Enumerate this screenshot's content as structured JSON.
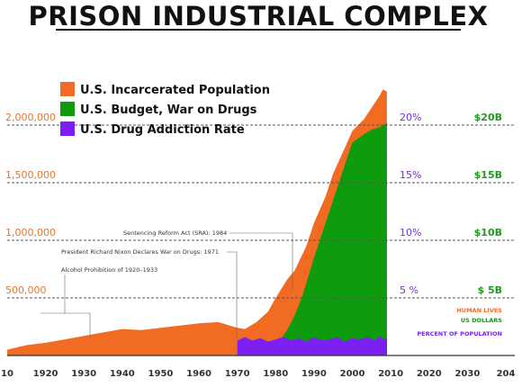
{
  "chart_data": {
    "type": "area",
    "title": "PRISON INDUSTRIAL COMPLEX",
    "x_ticks": [
      "10",
      "1920",
      "1930",
      "1940",
      "1950",
      "1960",
      "1970",
      "1980",
      "1990",
      "2000",
      "2010",
      "2020",
      "2030",
      "204"
    ],
    "x_range": [
      1910,
      2040
    ],
    "y_left": {
      "ticks": [
        "500,000",
        "1,000,000",
        "1,500,000",
        "2,000,000"
      ],
      "tick_values": [
        500000,
        1000000,
        1500000,
        2000000
      ],
      "range": [
        0,
        2500000
      ]
    },
    "y_mid": {
      "ticks": [
        "5 %",
        "10%",
        "15%",
        "20%"
      ]
    },
    "y_right": {
      "ticks": [
        "$ 5B",
        "$10B",
        "$15B",
        "$20B"
      ]
    },
    "legend": [
      {
        "label": "U.S. Incarcerated Population",
        "color": "#f26b22"
      },
      {
        "label": "U.S. Budget, War on Drugs",
        "color": "#0e9c0e"
      },
      {
        "label": "U.S. Drug Addiction Rate",
        "color": "#7b1ff2"
      }
    ],
    "key_labels": [
      {
        "label": "HUMAN LIVES",
        "color": "#f26b22"
      },
      {
        "label": "US DOLLARS",
        "color": "#0e9c0e"
      },
      {
        "label": "PERCENT OF POPULATION",
        "color": "#7b1ff2"
      }
    ],
    "annotations": [
      {
        "text": "Sentencing Reform Act (SRA): 1984",
        "year": 1984
      },
      {
        "text": "President Richard Nixon Declares War on Drugs: 1971",
        "year": 1971
      },
      {
        "text": "Alcohol Prohibition of 1920–1933",
        "year_start": 1920,
        "year_end": 1933
      }
    ],
    "series": [
      {
        "key": "incarcerated",
        "x": [
          1910,
          1915,
          1920,
          1925,
          1930,
          1935,
          1940,
          1945,
          1950,
          1955,
          1960,
          1965,
          1970,
          1972,
          1975,
          1978,
          1980,
          1983,
          1985,
          1988,
          1990,
          1993,
          1995,
          1998,
          2000,
          2003,
          2005,
          2007,
          2008,
          2009
        ],
        "values": [
          50000,
          90000,
          110000,
          140000,
          170000,
          200000,
          230000,
          220000,
          240000,
          260000,
          280000,
          290000,
          240000,
          230000,
          290000,
          380000,
          500000,
          660000,
          740000,
          950000,
          1150000,
          1380000,
          1580000,
          1800000,
          1950000,
          2050000,
          2150000,
          2250000,
          2310000,
          2290000
        ]
      },
      {
        "key": "budget",
        "x": [
          1970,
          1973,
          1975,
          1977,
          1980,
          1983,
          1985,
          1987,
          1990,
          1993,
          1995,
          1998,
          2000,
          2003,
          2005,
          2007,
          2009
        ],
        "values": [
          0,
          0.05,
          0.1,
          0.2,
          0.8,
          2.2,
          3.5,
          5.2,
          8.5,
          11.5,
          13.5,
          16.5,
          18.5,
          19.2,
          19.6,
          19.8,
          20.2
        ]
      },
      {
        "key": "addiction",
        "x": [
          1970,
          1972,
          1974,
          1976,
          1978,
          1980,
          1982,
          1984,
          1986,
          1988,
          1990,
          1992,
          1994,
          1996,
          1998,
          2000,
          2002,
          2004,
          2006,
          2007,
          2008,
          2009
        ],
        "values": [
          1.3,
          1.6,
          1.3,
          1.5,
          1.2,
          1.4,
          1.6,
          1.3,
          1.5,
          1.2,
          1.6,
          1.3,
          1.4,
          1.6,
          1.2,
          1.5,
          1.4,
          1.6,
          1.3,
          1.7,
          1.4,
          1.5
        ]
      }
    ]
  }
}
